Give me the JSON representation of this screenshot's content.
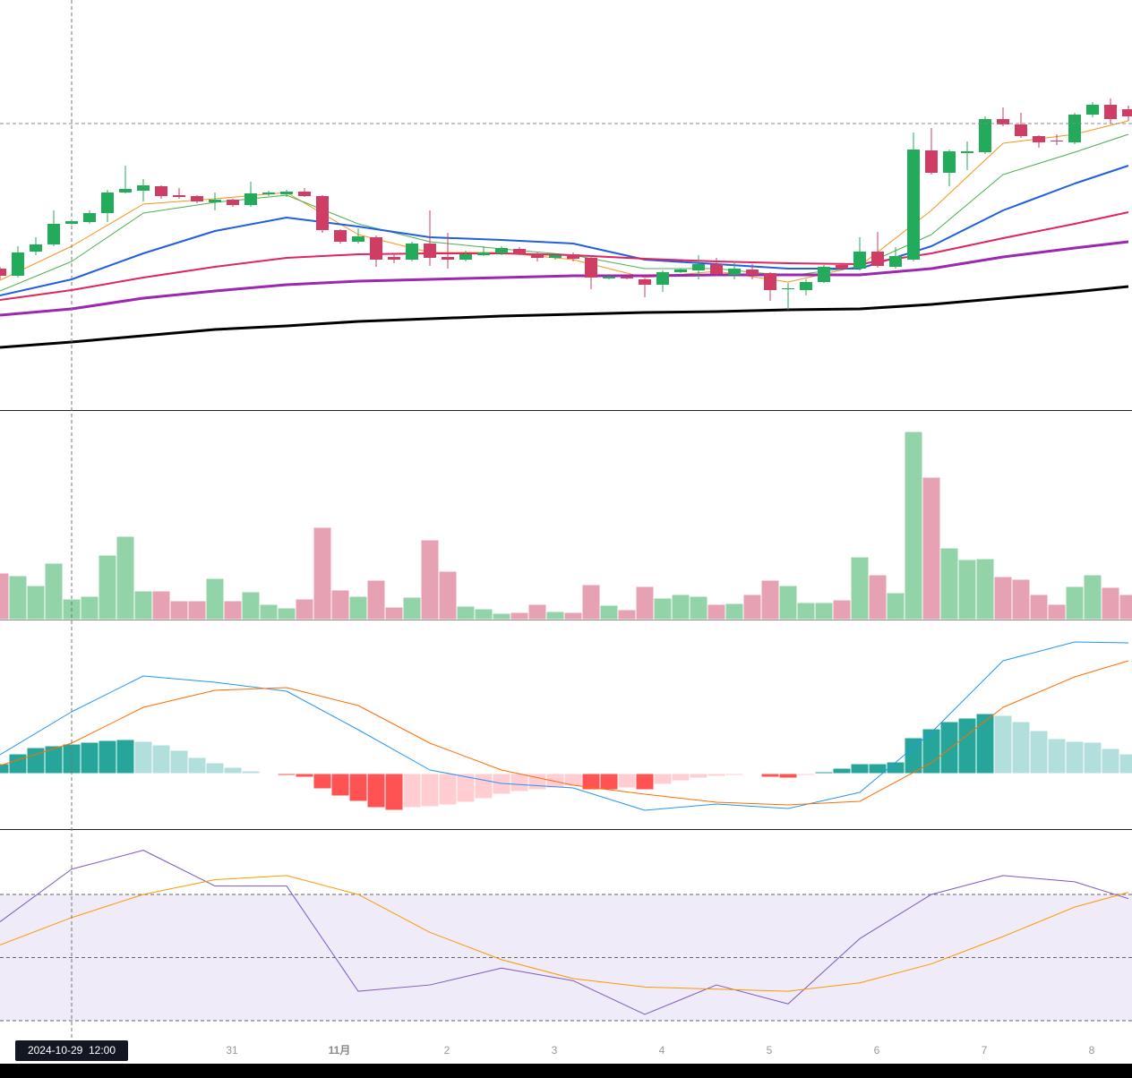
{
  "chart_data": [
    {
      "type": "candlestick",
      "ylim": [
        0,
        460
      ],
      "categories": [
        null,
        null,
        null,
        null,
        null,
        null,
        null,
        null,
        null,
        null,
        null,
        null,
        null,
        "31",
        null,
        null,
        null,
        null,
        null,
        "11月",
        null,
        null,
        null,
        null,
        null,
        "2",
        null,
        null,
        null,
        null,
        null,
        "3",
        null,
        null,
        null,
        null,
        null,
        "4",
        null,
        null,
        null,
        null,
        null,
        "5",
        null,
        null,
        null,
        null,
        null,
        "6",
        null,
        null,
        null,
        null,
        null,
        "7",
        null,
        null,
        null,
        null,
        null,
        "8",
        null,
        null
      ],
      "open": [
        160,
        152,
        179,
        187,
        210,
        212,
        222,
        245,
        247,
        252,
        242,
        241,
        234,
        237,
        231,
        243,
        243,
        246,
        241,
        203,
        190,
        195,
        173,
        170,
        188,
        173,
        170,
        175,
        177,
        182,
        177,
        172,
        176,
        172,
        149,
        151,
        148,
        142,
        156,
        158,
        165,
        153,
        159,
        155,
        137,
        136,
        145,
        164,
        160,
        179,
        162,
        170,
        292,
        267,
        289,
        290,
        327,
        321,
        308,
        303,
        301,
        332,
        343,
        338
      ],
      "high": [
        162,
        185,
        195,
        225,
        214,
        225,
        248,
        275,
        260,
        253,
        250,
        242,
        245,
        238,
        257,
        247,
        248,
        250,
        242,
        204,
        205,
        197,
        177,
        190,
        225,
        200,
        180,
        185,
        185,
        184,
        178,
        177,
        178,
        175,
        152,
        151,
        149,
        158,
        160,
        175,
        172,
        168,
        165,
        156,
        144,
        148,
        164,
        165,
        195,
        201,
        184,
        312,
        317,
        293,
        302,
        330,
        340,
        334,
        309,
        310,
        334,
        346,
        350,
        342
      ],
      "low": [
        148,
        150,
        175,
        185,
        209,
        210,
        212,
        244,
        235,
        238,
        238,
        233,
        225,
        229,
        229,
        241,
        240,
        240,
        200,
        188,
        188,
        162,
        166,
        168,
        163,
        160,
        168,
        174,
        175,
        175,
        168,
        170,
        168,
        137,
        148,
        148,
        128,
        134,
        155,
        148,
        152,
        148,
        148,
        124,
        114,
        130,
        144,
        158,
        158,
        161,
        160,
        168,
        265,
        252,
        270,
        288,
        319,
        306,
        295,
        298,
        299,
        329,
        322,
        325
      ],
      "close": [
        152,
        178,
        187,
        210,
        213,
        222,
        245,
        249,
        253,
        241,
        240,
        235,
        237,
        231,
        244,
        245,
        246,
        241,
        203,
        190,
        196,
        170,
        170,
        188,
        172,
        170,
        176,
        178,
        183,
        176,
        172,
        175,
        171,
        150,
        151,
        149,
        142,
        156,
        159,
        165,
        154,
        160,
        153,
        136,
        138,
        145,
        162,
        160,
        179,
        163,
        174,
        293,
        267,
        291,
        291,
        327,
        321,
        308,
        301,
        302,
        332,
        343,
        327,
        330
      ],
      "up_color": "#22ab5a",
      "down_color": "#cf3d65",
      "last_price": 322,
      "line_x": [
        0,
        4,
        8,
        12,
        16,
        20,
        24,
        28,
        32,
        36,
        40,
        44,
        48,
        52,
        56,
        60,
        63
      ],
      "lines": [
        {
          "color": "#f7931a",
          "values": [
            147,
            185,
            232,
            238,
            245,
            198,
            178,
            178,
            170,
            150,
            157,
            145,
            163,
            225,
            300,
            310,
            325
          ]
        },
        {
          "color": "#4caf50",
          "values": [
            135,
            168,
            222,
            234,
            242,
            210,
            190,
            182,
            175,
            160,
            160,
            152,
            162,
            198,
            265,
            290,
            310
          ]
        },
        {
          "color": "#1f5fe0",
          "values": [
            130,
            148,
            177,
            202,
            217,
            207,
            195,
            192,
            188,
            170,
            165,
            160,
            160,
            185,
            225,
            255,
            275
          ]
        },
        {
          "color": "#e0245e",
          "values": [
            125,
            136,
            150,
            162,
            172,
            176,
            177,
            177,
            175,
            171,
            168,
            166,
            165,
            177,
            194,
            210,
            223
          ]
        },
        {
          "color": "#9c27b0",
          "values": [
            108,
            115,
            127,
            135,
            142,
            146,
            148,
            150,
            152,
            152,
            153,
            153,
            153,
            160,
            173,
            183,
            190
          ]
        },
        {
          "color": "#000000",
          "values": [
            72,
            78,
            85,
            92,
            96,
            101,
            104,
            107,
            109,
            111,
            112,
            114,
            115,
            120,
            127,
            134,
            140
          ]
        }
      ]
    },
    {
      "type": "bar",
      "ylim": [
        0,
        232
      ],
      "up_color": "#93d3a8",
      "down_color": "#e6a1b3",
      "values": [
        52,
        49,
        38,
        63,
        23,
        26,
        72,
        93,
        32,
        32,
        21,
        21,
        46,
        21,
        31,
        17,
        13,
        23,
        103,
        33,
        26,
        44,
        14,
        25,
        89,
        54,
        15,
        12,
        7,
        8,
        17,
        9,
        8,
        39,
        16,
        11,
        37,
        24,
        28,
        26,
        17,
        18,
        28,
        44,
        38,
        19,
        19,
        22,
        70,
        50,
        30,
        210,
        159,
        80,
        67,
        68,
        48,
        45,
        28,
        17,
        37,
        50,
        36,
        28
      ]
    },
    {
      "type": "macd",
      "ylim": [
        -62,
        170
      ],
      "colors": [
        "#26a69a",
        "#b2dfdb",
        "#ff5252",
        "#ffcdd2"
      ],
      "values": [
        11,
        22,
        29,
        31,
        33,
        35,
        37,
        38,
        36,
        32,
        26,
        18,
        12,
        7,
        3,
        1,
        -2,
        -4,
        -17,
        -25,
        -31,
        -38,
        -41,
        -38,
        -37,
        -35,
        -32,
        -28,
        -23,
        -20,
        -18,
        -16,
        -14,
        -18,
        -18,
        -16,
        -18,
        -12,
        -8,
        -5,
        -3,
        -2,
        -1,
        -4,
        -5,
        -2,
        2,
        6,
        11,
        11,
        13,
        40,
        50,
        58,
        62,
        67,
        65,
        58,
        48,
        39,
        36,
        35,
        28,
        22
      ],
      "line_x": [
        0,
        4,
        8,
        12,
        16,
        20,
        24,
        28,
        32,
        36,
        40,
        44,
        48,
        52,
        56,
        60,
        63
      ],
      "lines": [
        {
          "color": "#2196f3",
          "values": [
            21,
            69,
            109,
            102,
            92,
            49,
            4,
            -11,
            -16,
            -41,
            -34,
            -39,
            -21,
            46,
            126,
            147,
            146
          ]
        },
        {
          "color": "#ff6d00",
          "values": [
            9,
            34,
            74,
            93,
            96,
            76,
            34,
            4,
            -13,
            -23,
            -32,
            -35,
            -31,
            12,
            74,
            108,
            126
          ]
        }
      ]
    },
    {
      "type": "rsi",
      "ylim": [
        11.5,
        110.2
      ],
      "levels": [
        20,
        50,
        80
      ],
      "band_color": "#efebf8",
      "line_x": [
        0,
        4,
        8,
        12,
        16,
        20,
        24,
        28,
        32,
        36,
        40,
        44,
        48,
        52,
        56,
        60,
        63
      ],
      "lines": [
        {
          "color": "#7e57c2",
          "values": [
            67,
            92,
            101,
            84,
            84,
            34,
            37,
            45,
            39,
            23,
            37,
            28,
            59,
            80,
            89,
            86,
            78
          ]
        },
        {
          "color": "#ff9800",
          "values": [
            56,
            69,
            80,
            87,
            89,
            80,
            62,
            49,
            40,
            36,
            35,
            34,
            38,
            47,
            60,
            74,
            81
          ]
        }
      ]
    }
  ],
  "crosshair": {
    "label": "2024-10-29  12:00",
    "index": 4
  }
}
